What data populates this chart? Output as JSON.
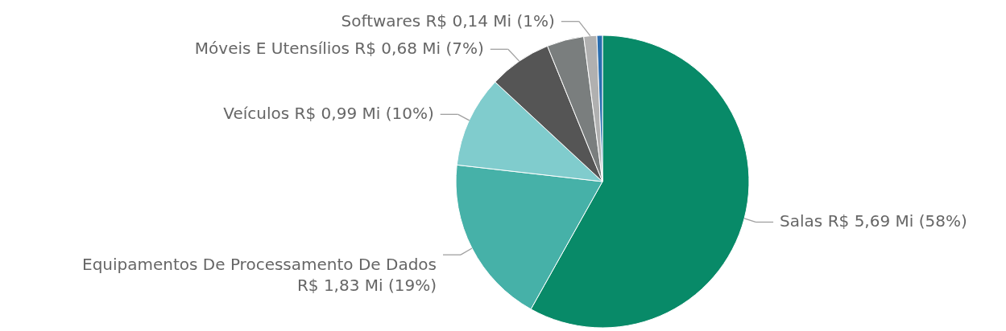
{
  "chart_data": {
    "type": "pie",
    "categories": [
      "Salas",
      "Equipamentos De Processamento De Dados",
      "Veículos",
      "Móveis E Utensílios",
      null,
      "Softwares",
      null
    ],
    "values": [
      5.69,
      1.83,
      0.99,
      0.68,
      0.4,
      0.14,
      0.06
    ],
    "value_labels": [
      "R$ 5,69 Mi (58%)",
      "R$ 1,83 Mi (19%)",
      "R$ 0,99 Mi (10%)",
      "R$ 0,68 Mi (7%)",
      null,
      "R$ 0,14 Mi (1%)",
      null
    ],
    "colors": [
      "#088a68",
      "#46b1a8",
      "#80cccd",
      "#555555",
      "#7a7e7e",
      "#b0b0b0",
      "#2a6eb0"
    ]
  }
}
